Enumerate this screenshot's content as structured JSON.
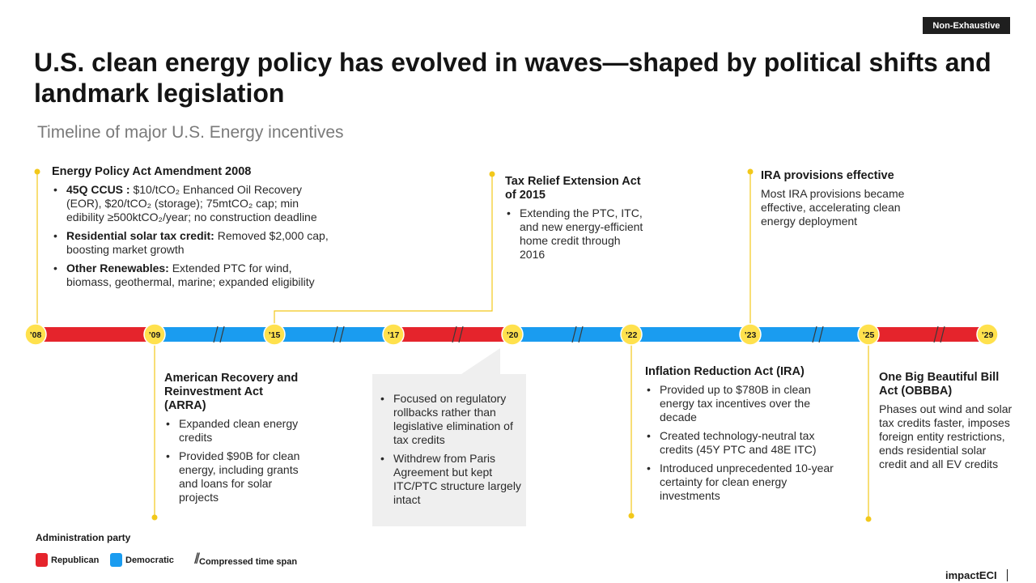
{
  "badge": "Non-Exhaustive",
  "title": "U.S. clean energy policy has evolved in waves—shaped by political shifts and landmark legislation",
  "subtitle": "Timeline of major U.S. Energy incentives",
  "colors": {
    "republican": "#e5242c",
    "democratic": "#1a9cf0",
    "marker": "#ffe14d",
    "connector": "#f2c81a"
  },
  "timeline": {
    "years": [
      "’08",
      "’09",
      "’15",
      "’17",
      "’20",
      "’22",
      "’23",
      "’25",
      "’29"
    ],
    "segments": [
      {
        "party": "republican"
      },
      {
        "party": "democratic"
      },
      {
        "party": "democratic"
      },
      {
        "party": "republican"
      },
      {
        "party": "democratic"
      },
      {
        "party": "democratic"
      },
      {
        "party": "democratic"
      },
      {
        "party": "republican"
      }
    ]
  },
  "events": {
    "epa2008": {
      "title": "Energy Policy Act Amendment 2008",
      "items": [
        {
          "bold": "45Q CCUS :",
          "text": " $10/tCO₂ Enhanced Oil Recovery (EOR), $20/tCO₂ (storage); 75mtCO₂ cap; min edibility ≥500ktCO₂/year; no construction deadline"
        },
        {
          "bold": "Residential solar tax credit:",
          "text": " Removed $2,000 cap, boosting market growth"
        },
        {
          "bold": "Other Renewables:",
          "text": " Extended PTC for wind, biomass, geothermal, marine; expanded eligibility"
        }
      ]
    },
    "arra": {
      "title": "American Recovery and Reinvestment Act (ARRA)",
      "items": [
        "Expanded clean energy credits",
        "Provided $90B for clean energy, including grants and loans for solar projects"
      ]
    },
    "trea2015": {
      "title": "Tax Relief Extension Act of 2015",
      "items": [
        "Extending the PTC, ITC, and new energy-efficient home credit through 2016"
      ]
    },
    "trump1": {
      "items": [
        "Focused on regulatory rollbacks rather than legislative elimination of tax credits",
        "Withdrew from Paris Agreement but kept ITC/PTC structure largely intact"
      ]
    },
    "ira": {
      "title": "Inflation Reduction Act (IRA)",
      "items": [
        "Provided up to $780B in clean energy tax incentives over the decade",
        "Created technology-neutral tax credits (45Y PTC and 48E ITC)",
        "Introduced unprecedented 10-year certainty for clean energy investments"
      ]
    },
    "ira_effective": {
      "title": "IRA provisions effective",
      "text": "Most IRA provisions became effective, accelerating clean energy deployment"
    },
    "obbba": {
      "title": "One Big Beautiful Bill Act (OBBBA)",
      "text": "Phases out wind and solar tax credits faster, imposes foreign entity restrictions, ends residential solar credit and all EV credits"
    }
  },
  "legend": {
    "title": "Administration party",
    "republican": "Republican",
    "democratic": "Democratic",
    "compressed": "Compressed time span"
  },
  "brand": "impactECI"
}
